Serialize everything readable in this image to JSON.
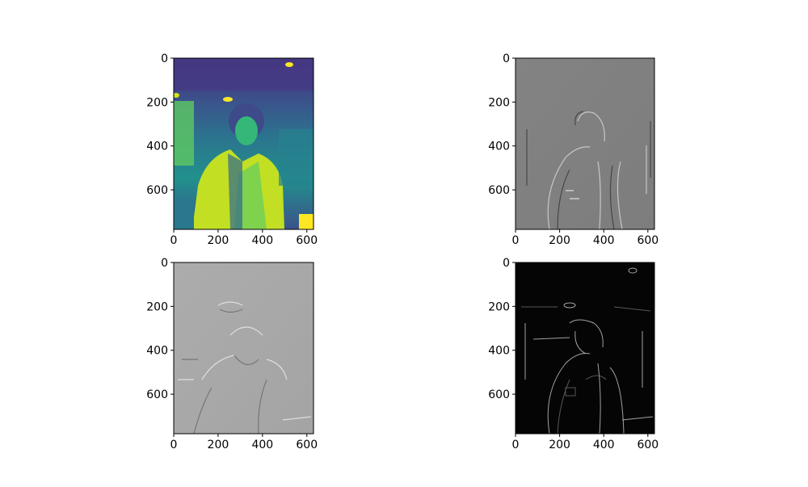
{
  "chart_data": [
    {
      "type": "heatmap",
      "panel": "top-left",
      "colormap": "viridis",
      "xlim": [
        0,
        630
      ],
      "ylim": [
        780,
        0
      ],
      "xticks": [
        "0",
        "200",
        "400",
        "600"
      ],
      "yticks": [
        "0",
        "200",
        "400",
        "600"
      ],
      "xtick_values": [
        0,
        200,
        400,
        600
      ],
      "ytick_values": [
        0,
        200,
        400,
        600
      ]
    },
    {
      "type": "heatmap",
      "panel": "top-right",
      "colormap": "gray",
      "xlim": [
        0,
        630
      ],
      "ylim": [
        780,
        0
      ],
      "xticks": [
        "0",
        "200",
        "400",
        "600"
      ],
      "yticks": [
        "0",
        "200",
        "400",
        "600"
      ],
      "xtick_values": [
        0,
        200,
        400,
        600
      ],
      "ytick_values": [
        0,
        200,
        400,
        600
      ]
    },
    {
      "type": "heatmap",
      "panel": "bottom-left",
      "colormap": "gray",
      "xlim": [
        0,
        630
      ],
      "ylim": [
        780,
        0
      ],
      "xticks": [
        "0",
        "200",
        "400",
        "600"
      ],
      "yticks": [
        "0",
        "200",
        "400",
        "600"
      ],
      "xtick_values": [
        0,
        200,
        400,
        600
      ],
      "ytick_values": [
        0,
        200,
        400,
        600
      ]
    },
    {
      "type": "heatmap",
      "panel": "bottom-right",
      "colormap": "gray",
      "xlim": [
        0,
        630
      ],
      "ylim": [
        780,
        0
      ],
      "xticks": [
        "0",
        "200",
        "400",
        "600"
      ],
      "yticks": [
        "0",
        "200",
        "400",
        "600"
      ],
      "xtick_values": [
        0,
        200,
        400,
        600
      ],
      "ytick_values": [
        0,
        200,
        400,
        600
      ]
    }
  ],
  "colors": {
    "viridis_dark": "#440154",
    "viridis_mid": "#21918c",
    "viridis_light": "#b5de2b",
    "viridis_yellow": "#fde725",
    "gray_mid": "#808080",
    "gray_light": "#a8a8a8",
    "edge_dark": "#050505"
  }
}
